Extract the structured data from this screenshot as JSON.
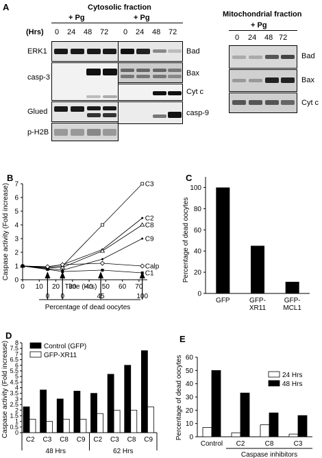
{
  "panel_a": {
    "letter": "A",
    "cytosolic_title": "Cytosolic fraction",
    "mito_title": "Mitochondrial fraction",
    "treatment_label": "+ Pg",
    "hrs_label": "(Hrs)",
    "timepoints": [
      "0",
      "24",
      "48",
      "72"
    ],
    "cyto_left_labels": [
      "ERK1",
      "casp-3",
      "Glued",
      "p-H2B"
    ],
    "cyto_right_labels": [
      "Bad",
      "Bax",
      "Cyt c",
      "casp-9"
    ],
    "mito_labels": [
      "Bad",
      "Bax",
      "Cyt c"
    ]
  },
  "chart_data": [
    {
      "id": "B",
      "type": "line",
      "panel_letter": "B",
      "xlabel": "Time (Hrs)",
      "ylabel": "Caspase activity (Fold increase)",
      "xlim": [
        0,
        75
      ],
      "ylim": [
        0,
        7
      ],
      "xticks": [
        "0",
        "10",
        "20",
        "30",
        "40",
        "50",
        "60",
        "70"
      ],
      "yticks": [
        "0",
        "1",
        "2",
        "3",
        "4",
        "5",
        "6",
        "7"
      ],
      "x": [
        0,
        15,
        24,
        48,
        72
      ],
      "series": [
        {
          "name": "C3",
          "values": [
            1,
            0.9,
            1.0,
            4.0,
            7.0
          ]
        },
        {
          "name": "C2",
          "values": [
            1,
            0.95,
            1.1,
            2.2,
            4.5
          ]
        },
        {
          "name": "C8",
          "values": [
            1,
            0.85,
            0.9,
            2.1,
            4.0
          ]
        },
        {
          "name": "C9",
          "values": [
            1,
            0.8,
            0.7,
            1.5,
            3.0
          ]
        },
        {
          "name": "Calp",
          "values": [
            1,
            0.95,
            1.1,
            1.2,
            1.0
          ]
        },
        {
          "name": "C1",
          "values": [
            1,
            0.75,
            0.6,
            0.7,
            0.5
          ]
        }
      ],
      "dead_axis": {
        "label": "Percentage of dead oocytes",
        "arrows": [
          {
            "time": 15,
            "value": "0"
          },
          {
            "time": 24,
            "value": "0"
          },
          {
            "time": 47,
            "value": "45"
          },
          {
            "time": 72,
            "value": "100"
          }
        ]
      }
    },
    {
      "id": "C",
      "type": "bar",
      "panel_letter": "C",
      "ylabel": "Percentage of dead oocytes",
      "categories": [
        "GFP",
        "GFP-\nXR11",
        "GFP-\nMCL1"
      ],
      "values": [
        100,
        45,
        11
      ],
      "ylim": [
        0,
        110
      ],
      "yticks": [
        "0",
        "20",
        "40",
        "60",
        "80",
        "100"
      ]
    },
    {
      "id": "D",
      "type": "bar",
      "panel_letter": "D",
      "ylabel": "Caspase activity (Fold increase)",
      "categories": [
        "C2",
        "C3",
        "C8",
        "C9",
        "C2",
        "C3",
        "C8",
        "C9"
      ],
      "groups": [
        "48 Hrs",
        "62 Hrs"
      ],
      "series": [
        {
          "name": "Control (GFP)",
          "values": [
            2.3,
            3.8,
            3.0,
            3.7,
            3.5,
            5.2,
            6.0,
            7.3
          ],
          "color": "#000000"
        },
        {
          "name": "GFP-XR11",
          "values": [
            1.2,
            1.0,
            1.2,
            1.2,
            1.7,
            2.0,
            2.0,
            2.3
          ],
          "color": "#ffffff"
        }
      ],
      "ylim": [
        0,
        8
      ],
      "yticks": [
        "0",
        "0.5",
        "1",
        "1.5",
        "2",
        "2.5",
        "3",
        "3.5",
        "4",
        "4.5",
        "5",
        "5.5",
        "6",
        "6.5",
        "7",
        "7.5",
        "8"
      ]
    },
    {
      "id": "E",
      "type": "bar",
      "panel_letter": "E",
      "ylabel": "Percentage of dead oocytes",
      "categories": [
        "Control",
        "C2",
        "C8",
        "C3"
      ],
      "group_label": "Caspase inhibitors",
      "series": [
        {
          "name": "24 Hrs",
          "values": [
            7,
            3,
            9,
            2
          ],
          "color": "#ffffff"
        },
        {
          "name": "48 Hrs",
          "values": [
            50,
            33,
            18,
            16
          ],
          "color": "#000000"
        }
      ],
      "ylim": [
        0,
        60
      ],
      "yticks": [
        "0",
        "10",
        "20",
        "30",
        "40",
        "50",
        "60"
      ]
    }
  ]
}
